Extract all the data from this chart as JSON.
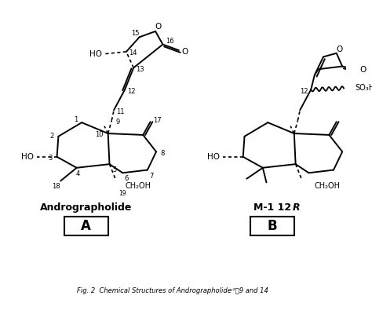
{
  "bg_color": "#ffffff",
  "line_color": "#000000",
  "text_color": "#000000",
  "label_A": "Andrographolide",
  "label_B": "M-1 12",
  "box_A": "A",
  "box_B": "B",
  "fig_width": 4.74,
  "fig_height": 3.95,
  "dpi": 100
}
